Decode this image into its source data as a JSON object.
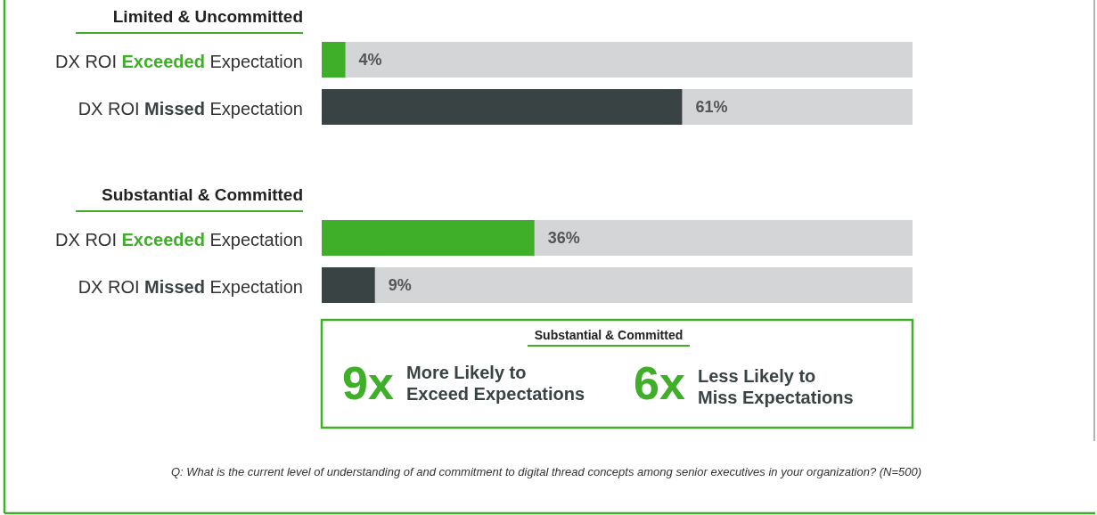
{
  "chart_data": [
    {
      "type": "bar",
      "orientation": "horizontal",
      "title": "Limited & Uncommitted",
      "categories": [
        "DX ROI Exceeded Expectation",
        "DX ROI Missed Expectation"
      ],
      "values": [
        4,
        61
      ],
      "value_labels": [
        "4%",
        "61%"
      ],
      "colors": [
        "#3fae29",
        "#3a4344"
      ],
      "xlim": [
        0,
        100
      ],
      "tick_labels": false
    },
    {
      "type": "bar",
      "orientation": "horizontal",
      "title": "Substantial & Committed",
      "categories": [
        "DX ROI Exceeded Expectation",
        "DX ROI Missed Expectation"
      ],
      "values": [
        36,
        9
      ],
      "value_labels": [
        "36%",
        "9%"
      ],
      "colors": [
        "#3fae29",
        "#3a4344"
      ],
      "xlim": [
        0,
        100
      ],
      "tick_labels": false
    },
    {
      "type": "other",
      "title": "Substantial & Committed",
      "annotations": [
        "9x",
        "More Likely to\nExceed Expectations",
        "6x",
        "Less Likely to\nMiss Expectations",
        "Q: What is the current level of understanding of and commitment to digital thread concepts among senior executives in your organization? (N=500)"
      ]
    }
  ]
}
